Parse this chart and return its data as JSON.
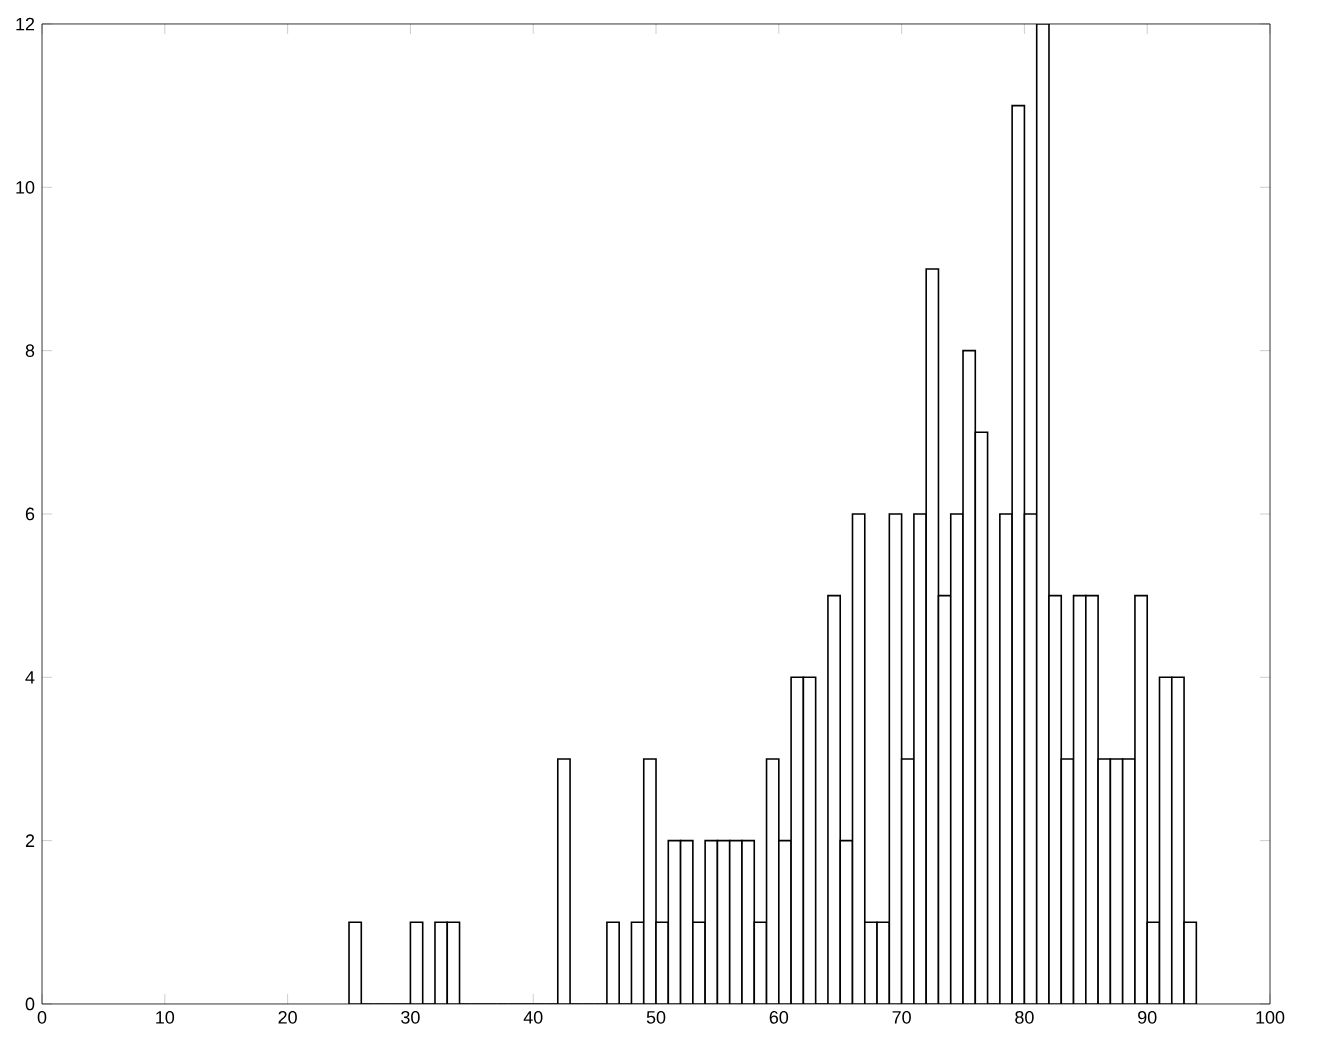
{
  "chart_data": {
    "type": "histogram",
    "bins": [
      25,
      26,
      27,
      28,
      29,
      30,
      31,
      32,
      33,
      34,
      35,
      36,
      37,
      38,
      39,
      40,
      41,
      42,
      43,
      44,
      45,
      46,
      47,
      48,
      49,
      50,
      51,
      52,
      53,
      54,
      55,
      56,
      57,
      58,
      59,
      60,
      61,
      62,
      63,
      64,
      65,
      66,
      67,
      68,
      69,
      70,
      71,
      72,
      73,
      74,
      75,
      76,
      77,
      78,
      79,
      80,
      81,
      82,
      83,
      84,
      85,
      86,
      87,
      88,
      89,
      90,
      91,
      92,
      93,
      94
    ],
    "values": [
      1,
      0,
      0,
      0,
      0,
      1,
      0,
      1,
      1,
      0,
      0,
      0,
      0,
      0,
      0,
      0,
      0,
      3,
      0,
      0,
      0,
      1,
      0,
      1,
      3,
      1,
      2,
      2,
      1,
      2,
      2,
      2,
      2,
      1,
      3,
      2,
      4,
      4,
      0,
      5,
      2,
      6,
      1,
      1,
      6,
      3,
      6,
      9,
      5,
      6,
      8,
      7,
      0,
      6,
      11,
      6,
      12,
      5,
      3,
      5,
      5,
      3,
      3,
      3,
      5,
      1,
      4,
      4,
      1
    ],
    "color": "#000000",
    "xlim": [
      0,
      100
    ],
    "xticks": [
      0,
      10,
      20,
      30,
      40,
      50,
      60,
      70,
      80,
      90,
      100
    ],
    "ylim": [
      0,
      12
    ],
    "yticks": [
      0,
      2,
      4,
      6,
      8,
      10,
      12
    ],
    "grid": false
  }
}
